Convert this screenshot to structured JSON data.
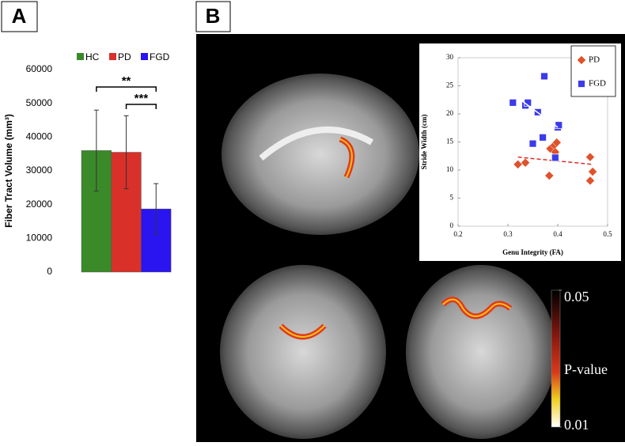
{
  "panel_labels": [
    "A",
    "B"
  ],
  "chart_data": [
    {
      "type": "bar",
      "ylabel": "Fiber Tract Volume (mm³)",
      "categories": [
        "HC",
        "PD",
        "FGD"
      ],
      "values": [
        36000,
        35500,
        18700
      ],
      "errors": [
        12000,
        10800,
        7500
      ],
      "colors": [
        "#3a8a2a",
        "#d9302a",
        "#2a14f0"
      ],
      "annotations": [
        "**",
        "***"
      ],
      "ylim": [
        0,
        60000
      ],
      "yticks": [
        0,
        10000,
        20000,
        30000,
        40000,
        50000,
        60000
      ]
    },
    {
      "type": "scatter",
      "xlabel": "Genu Integrity (FA)",
      "ylabel": "Stride Width (cm)",
      "xlim": [
        0.2,
        0.5
      ],
      "xticks": [
        0.2,
        0.3,
        0.4,
        0.5
      ],
      "ylim": [
        0,
        30
      ],
      "yticks": [
        0,
        5,
        10,
        15,
        20,
        25,
        30
      ],
      "legend": "upper right",
      "series": [
        {
          "name": "PD",
          "color": "#e0522a",
          "marker": "diamond",
          "x": [
            0.32,
            0.335,
            0.383,
            0.385,
            0.393,
            0.398,
            0.395,
            0.465,
            0.47,
            0.465
          ],
          "values": [
            11.0,
            11.3,
            9.0,
            13.8,
            14.4,
            14.9,
            13.2,
            12.3,
            9.7,
            8.1
          ],
          "fit_color": "#d9302a",
          "fit_x": [
            0.32,
            0.47
          ],
          "fit_y": [
            12.3,
            11.0
          ]
        },
        {
          "name": "FGD",
          "color": "#3b3bea",
          "marker": "square",
          "x": [
            0.31,
            0.335,
            0.34,
            0.373,
            0.36,
            0.35,
            0.37,
            0.4,
            0.402,
            0.395
          ],
          "values": [
            22.0,
            21.5,
            22.0,
            26.7,
            20.3,
            14.7,
            15.8,
            17.6,
            18.0,
            12.2
          ],
          "fit_color": "#ffffff",
          "fit_x": [
            0.31,
            0.4
          ],
          "fit_y": [
            23.5,
            17.6
          ]
        }
      ]
    }
  ],
  "colorbar": {
    "title": "P-value",
    "clim": [
      0.01,
      0.05
    ],
    "ticks": [
      0.05,
      0.01
    ]
  }
}
